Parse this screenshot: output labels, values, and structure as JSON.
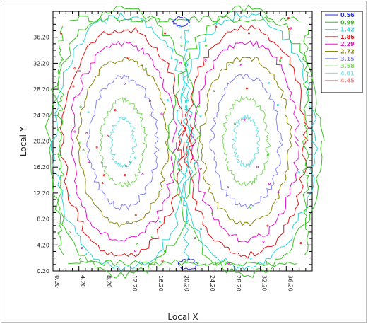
{
  "chart_data": {
    "type": "contour",
    "title": "",
    "xlabel": "Local X",
    "ylabel": "Local Y",
    "xlim": [
      0.2,
      40.2
    ],
    "ylim": [
      0.2,
      40.2
    ],
    "x_ticks": [
      "0.20",
      "4.20",
      "8.20",
      "12.20",
      "16.20",
      "20.20",
      "24.20",
      "28.20",
      "32.20",
      "36.20"
    ],
    "y_ticks": [
      "0.20",
      "4.20",
      "8.20",
      "12.20",
      "16.20",
      "20.20",
      "24.20",
      "28.20",
      "32.20",
      "36.20"
    ],
    "grid": false,
    "legend_position": "top-right",
    "series": [
      {
        "label": "0.56",
        "color": "#2b2bd9"
      },
      {
        "label": "0.99",
        "color": "#39c524"
      },
      {
        "label": "1.42",
        "color": "#2fd6d6"
      },
      {
        "label": "1.86",
        "color": "#e01818"
      },
      {
        "label": "2.29",
        "color": "#e018c8"
      },
      {
        "label": "2.72",
        "color": "#8a8a10"
      },
      {
        "label": "3.15",
        "color": "#8585ef"
      },
      {
        "label": "3.58",
        "color": "#7bd860"
      },
      {
        "label": "4.01",
        "color": "#7be0e0"
      },
      {
        "label": "4.45",
        "color": "#f08080"
      }
    ],
    "contours": [
      {
        "level": "0.99",
        "shape": "edge-outer"
      },
      {
        "level": "0.56",
        "shape": "corner-bits"
      },
      {
        "level": "1.42",
        "shape": "band-centre"
      },
      {
        "level": "1.86",
        "shape": "ring-large"
      },
      {
        "level": "2.29",
        "shape": "ring-medium"
      },
      {
        "level": "2.72",
        "shape": "ring-small"
      },
      {
        "level": "3.15",
        "shape": "ring-tiny"
      },
      {
        "level": "3.58",
        "shape": "ring-core"
      }
    ]
  }
}
